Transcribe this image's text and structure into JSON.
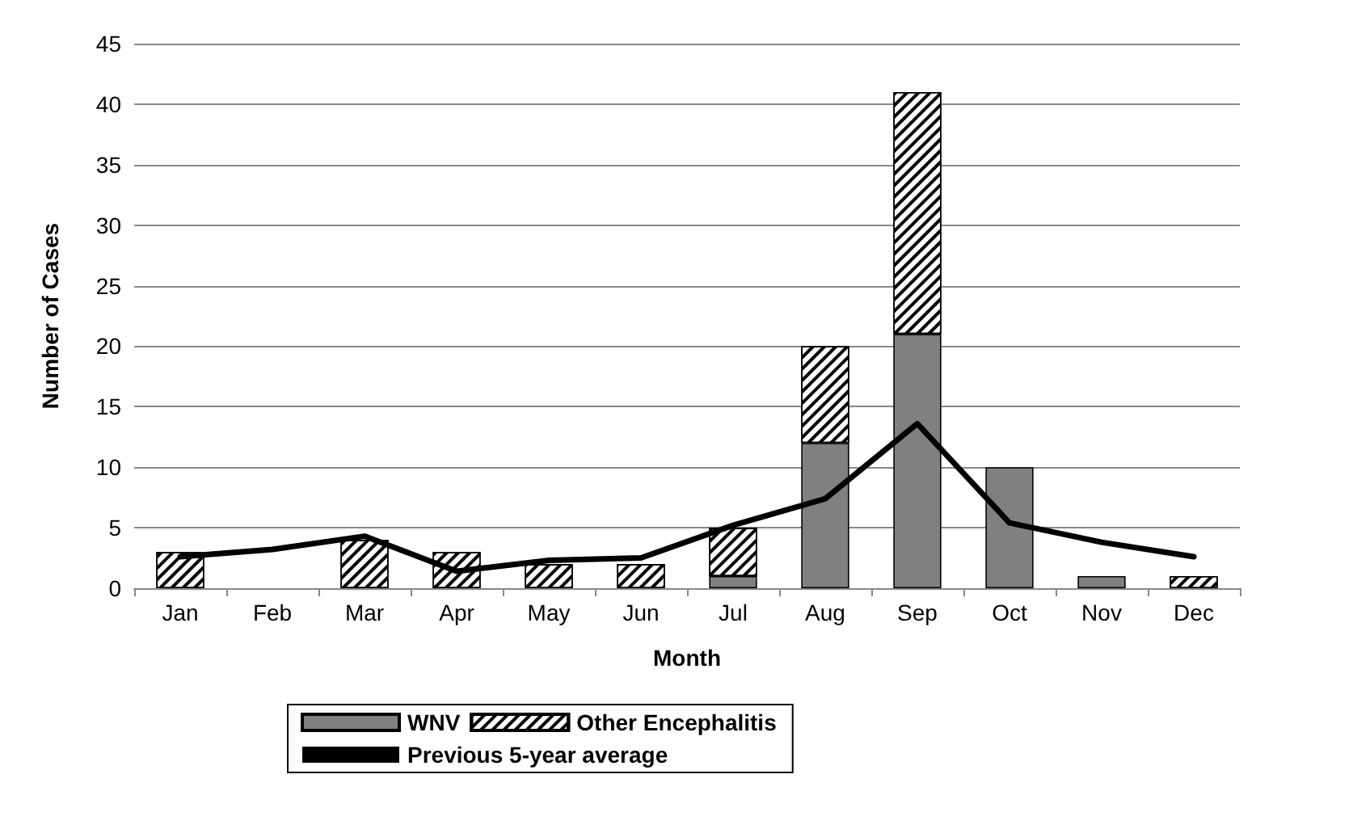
{
  "chart_data": {
    "type": "bar",
    "stacked": true,
    "xlabel": "Month",
    "ylabel": "Number of Cases",
    "categories": [
      "Jan",
      "Feb",
      "Mar",
      "Apr",
      "May",
      "Jun",
      "Jul",
      "Aug",
      "Sep",
      "Oct",
      "Nov",
      "Dec"
    ],
    "series": [
      {
        "name": "WNV",
        "color": "#808080",
        "values": [
          0,
          0,
          0,
          0,
          0,
          0,
          1,
          12,
          21,
          10,
          1,
          0
        ]
      },
      {
        "name": "Other Encephalitis",
        "color": "#ffffff",
        "values": [
          3,
          0,
          4,
          3,
          2,
          2,
          4,
          8,
          20,
          0,
          0,
          1
        ]
      },
      {
        "name": "Previous 5-year average",
        "type": "line",
        "color": "#000000",
        "values": [
          2.6,
          3.2,
          4.3,
          1.4,
          2.3,
          2.5,
          5.2,
          7.4,
          13.6,
          5.4,
          3.8,
          2.6
        ]
      }
    ],
    "ylim": [
      0,
      45
    ],
    "yticks": [
      0,
      5,
      10,
      15,
      20,
      25,
      30,
      35,
      40,
      45
    ],
    "grid": "y",
    "legend": "bottom",
    "marker": "none",
    "line_style": "solid"
  }
}
